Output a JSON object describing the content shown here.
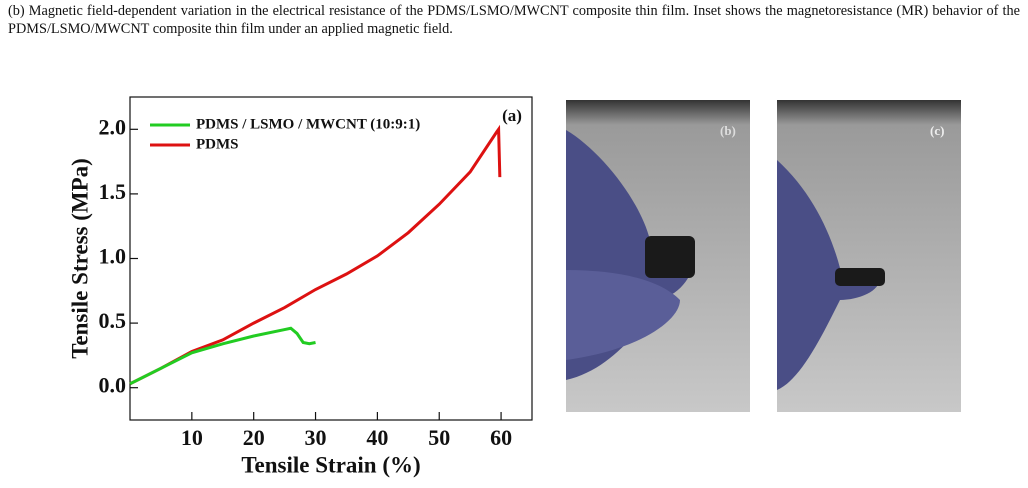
{
  "caption": "(b) Magnetic field-dependent variation in the electrical resistance of the PDMS/LSMO/MWCNT composite thin film. Inset shows the magnetoresistance (MR) behavior of the PDMS/LSMO/MWCNT composite thin film under an applied magnetic field.",
  "chart_data": {
    "type": "line",
    "annotation": "(a)",
    "x_label": "Tensile Strain (%)",
    "y_label": "Tensile Stress (MPa)",
    "xlim": [
      0,
      65
    ],
    "xticks": [
      10,
      20,
      30,
      40,
      50,
      60
    ],
    "ylim": [
      -0.25,
      2.25
    ],
    "yticks": [
      {
        "value": 0,
        "label": "0.0"
      },
      {
        "value": 0.5,
        "label": "0.5"
      },
      {
        "value": 1,
        "label": "1.0"
      },
      {
        "value": 1.5,
        "label": "1.5"
      },
      {
        "value": 2,
        "label": "2.0"
      }
    ],
    "legend": "upper left",
    "series": [
      {
        "name": "PDMS / LSMO / MWCNT (10:9:1)",
        "color": "#22cc22",
        "x": [
          0,
          5,
          10,
          15,
          20,
          25,
          26,
          27,
          28,
          29,
          30
        ],
        "values": [
          0.03,
          0.15,
          0.27,
          0.34,
          0.4,
          0.45,
          0.46,
          0.42,
          0.35,
          0.34,
          0.35
        ]
      },
      {
        "name": "PDMS",
        "color": "#dd1111",
        "x": [
          0,
          5,
          10,
          15,
          20,
          25,
          30,
          35,
          40,
          45,
          50,
          55,
          59.3,
          59.6,
          59.8
        ],
        "values": [
          0.03,
          0.15,
          0.28,
          0.37,
          0.5,
          0.62,
          0.76,
          0.88,
          1.02,
          1.2,
          1.42,
          1.67,
          1.98,
          2.0,
          1.63
        ]
      }
    ]
  },
  "photos": [
    {
      "label": "(b)"
    },
    {
      "label": "(c)"
    }
  ]
}
